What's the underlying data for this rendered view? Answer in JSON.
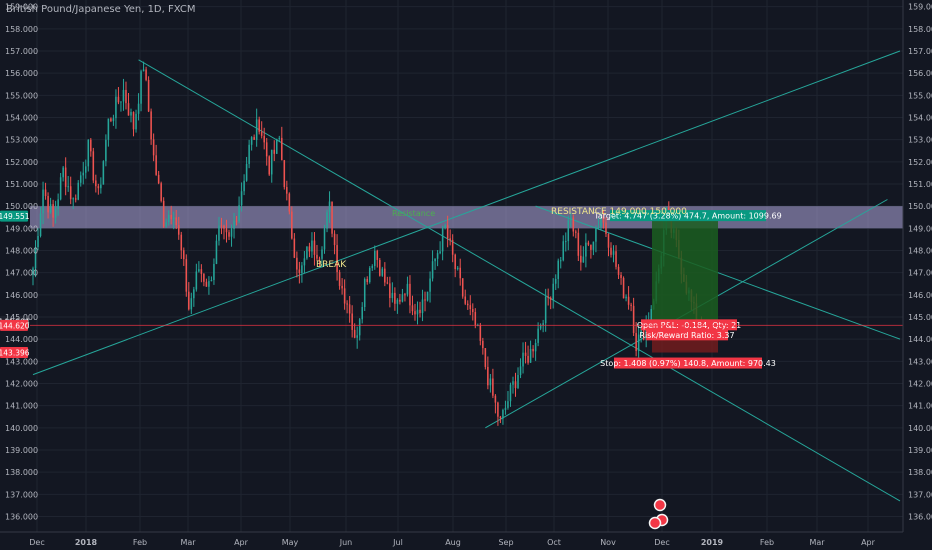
{
  "title": "British Pound/Japanese Yen, 1D, FXCM",
  "colors": {
    "background": "#131722",
    "grid": "#1f2430",
    "axis_text": "#b2b5be",
    "up": "#26a69a",
    "down": "#ef5350",
    "trendline": "#26a69a",
    "zone": "#b3a9e0",
    "target": "#1b5e20",
    "stop": "#7f1d1d"
  },
  "chart_data": {
    "type": "candlestick",
    "title": "British Pound/Japanese Yen, 1D, FXCM",
    "ylim": [
      135.3,
      159.3
    ],
    "y_ticks": [
      "136.000",
      "137.000",
      "138.000",
      "139.000",
      "140.000",
      "141.000",
      "142.000",
      "143.000",
      "144.000",
      "145.000",
      "146.000",
      "147.000",
      "148.000",
      "149.000",
      "150.000",
      "151.000",
      "152.000",
      "153.000",
      "154.000",
      "155.000",
      "156.000",
      "157.000",
      "158.000",
      "159.000"
    ],
    "x_ticks": [
      "Dec",
      "2018",
      "Feb",
      "Mar",
      "Apr",
      "May",
      "Jun",
      "Jul",
      "Aug",
      "Sep",
      "Oct",
      "Nov",
      "Dec",
      "2019",
      "Feb",
      "Mar",
      "Apr"
    ],
    "path": [
      [
        0,
        147.2
      ],
      [
        4,
        150.8
      ],
      [
        8,
        149.4
      ],
      [
        12,
        151.6
      ],
      [
        16,
        150.2
      ],
      [
        22,
        152.6
      ],
      [
        26,
        150.4
      ],
      [
        30,
        153.8
      ],
      [
        36,
        155.2
      ],
      [
        40,
        153.6
      ],
      [
        44,
        156.4
      ],
      [
        48,
        152.2
      ],
      [
        52,
        149.4
      ],
      [
        56,
        149.9
      ],
      [
        60,
        147.2
      ],
      [
        62,
        145.4
      ],
      [
        66,
        147.2
      ],
      [
        70,
        146.4
      ],
      [
        74,
        148.8
      ],
      [
        78,
        148.4
      ],
      [
        82,
        150.2
      ],
      [
        86,
        152.6
      ],
      [
        90,
        153.8
      ],
      [
        94,
        151.8
      ],
      [
        98,
        153.0
      ],
      [
        102,
        149.4
      ],
      [
        106,
        146.8
      ],
      [
        110,
        148.2
      ],
      [
        114,
        148.0
      ],
      [
        118,
        149.9
      ],
      [
        122,
        146.6
      ],
      [
        126,
        145.4
      ],
      [
        128,
        143.8
      ],
      [
        132,
        146.6
      ],
      [
        136,
        148.0
      ],
      [
        140,
        146.6
      ],
      [
        144,
        145.4
      ],
      [
        148,
        146.4
      ],
      [
        152,
        145.4
      ],
      [
        156,
        145.8
      ],
      [
        160,
        147.6
      ],
      [
        164,
        149.0
      ],
      [
        168,
        147.2
      ],
      [
        172,
        145.6
      ],
      [
        176,
        144.6
      ],
      [
        178,
        143.8
      ],
      [
        182,
        141.8
      ],
      [
        186,
        140.2
      ],
      [
        190,
        141.6
      ],
      [
        194,
        142.8
      ],
      [
        198,
        143.4
      ],
      [
        202,
        144.8
      ],
      [
        206,
        146.2
      ],
      [
        210,
        147.8
      ],
      [
        214,
        149.4
      ],
      [
        218,
        147.6
      ],
      [
        222,
        148.4
      ],
      [
        226,
        149.6
      ],
      [
        230,
        148.2
      ],
      [
        234,
        146.4
      ],
      [
        238,
        145.6
      ],
      [
        240,
        143.8
      ],
      [
        244,
        144.6
      ],
      [
        248,
        146.4
      ],
      [
        252,
        149.6
      ],
      [
        256,
        148.2
      ],
      [
        260,
        146.4
      ],
      [
        262,
        145.6
      ],
      [
        264,
        144.8
      ],
      [
        266,
        144.6
      ]
    ],
    "annotations": [
      "RESISTANCE 149.000,150.000",
      "BREAK",
      "Resistance"
    ],
    "horizontal_levels": [
      {
        "value": 149.551,
        "label": "149.551",
        "color": "#089981"
      },
      {
        "value": 144.804,
        "label": "144.804",
        "color": "#1e222d"
      },
      {
        "value": 144.62,
        "label": "144.620",
        "color": "#f23645"
      },
      {
        "value": 143.396,
        "label": "143.396",
        "color": "#f23645"
      }
    ],
    "resistance_zone": [
      149.0,
      150.0
    ],
    "position": {
      "target_text": "Target: 4.747 (3.28%) 474.7, Amount: 1099.69",
      "pnl_text": "Open P&L: -0.184, Qty: 21",
      "rr_text": "Risk/Reward Ratio: 3.37",
      "stop_text": "Stop: 1.408 (0.97%) 140.8, Amount: 970.43"
    },
    "trendlines": [
      {
        "from": [
          0,
          142.4
        ],
        "to": [
          345,
          157.0
        ]
      },
      {
        "from": [
          42,
          156.6
        ],
        "to": [
          345,
          136.7
        ]
      },
      {
        "from": [
          180,
          140.0
        ],
        "to": [
          340,
          150.3
        ]
      },
      {
        "from": [
          200,
          150.0
        ],
        "to": [
          345,
          144.0
        ]
      }
    ]
  }
}
